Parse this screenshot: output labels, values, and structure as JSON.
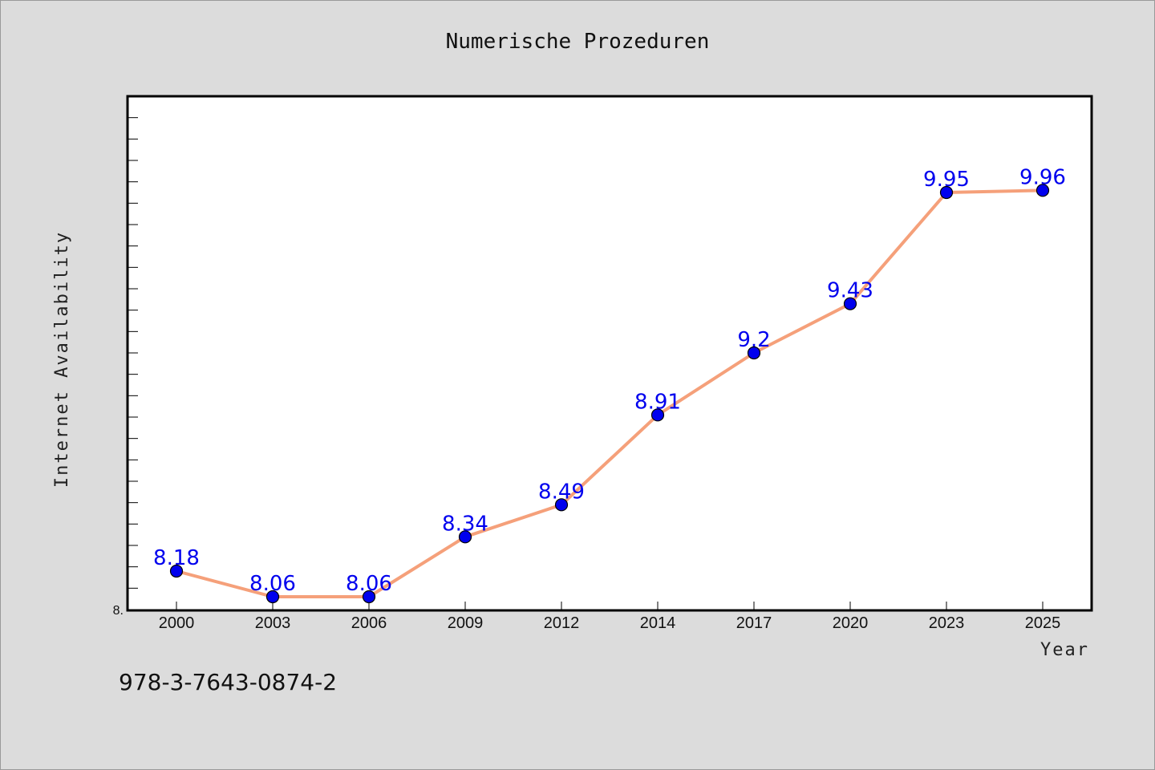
{
  "chart_data": {
    "type": "line",
    "title": "Numerische Prozeduren",
    "xlabel": "Year",
    "ylabel": "Internet Availability",
    "categories": [
      "2000",
      "2003",
      "2006",
      "2009",
      "2012",
      "2014",
      "2017",
      "2020",
      "2023",
      "2025"
    ],
    "series": [
      {
        "values": [
          8.18,
          8.06,
          8.06,
          8.34,
          8.49,
          8.91,
          9.2,
          9.43,
          9.95,
          9.96
        ]
      }
    ],
    "data_labels": [
      "8.18",
      "8.06",
      "8.06",
      "8.34",
      "8.49",
      "8.91",
      "9.2",
      "9.43",
      "9.95",
      "9.96"
    ],
    "ylim": [
      8.0,
      10.4
    ],
    "y_tick_label": "8.",
    "grid": false,
    "colors": {
      "line": "#f5a07a",
      "marker": "#0000ee",
      "data_label": "#0000ee",
      "plot_bg": "#ffffff",
      "page_bg": "#dcdcdc"
    }
  },
  "footer": {
    "isbn": "978-3-7643-0874-2"
  }
}
